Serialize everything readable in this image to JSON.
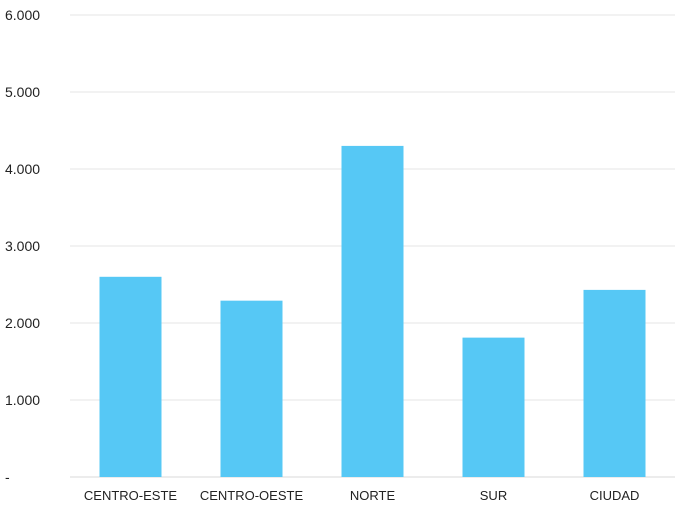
{
  "chart_data": {
    "type": "bar",
    "title": "",
    "xlabel": "",
    "ylabel": "",
    "categories": [
      "CENTRO-ESTE",
      "CENTRO-OESTE",
      "NORTE",
      "SUR",
      "CIUDAD"
    ],
    "values": [
      2600,
      2290,
      4300,
      1810,
      2430
    ],
    "ylim": [
      0,
      6000
    ],
    "yticks": [
      0,
      1000,
      2000,
      3000,
      4000,
      5000,
      6000
    ],
    "ytick_labels": [
      "-",
      "1.000",
      "2.000",
      "3.000",
      "4.000",
      "5.000",
      "6.000"
    ],
    "bar_color": "#56c8f5",
    "grid": true,
    "legend": "none"
  }
}
